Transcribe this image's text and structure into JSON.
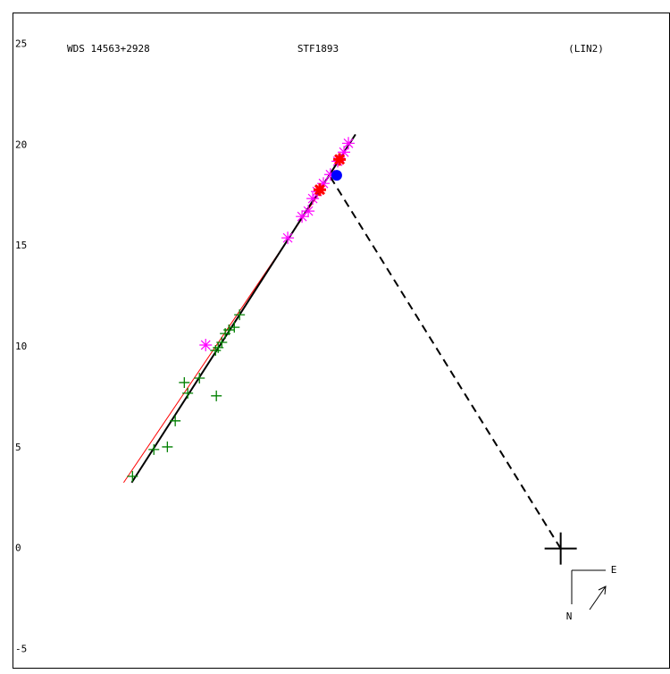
{
  "chart_data": {
    "type": "scatter",
    "title": "STF1893",
    "annotations": [
      "WDS 14563+2928",
      "(LIN2)"
    ],
    "compass": {
      "east": "E",
      "north": "N"
    },
    "xlim": [
      27.17,
      -5.4
    ],
    "ylim": [
      -5.93,
      26.55
    ],
    "yticks": [
      25,
      20,
      15,
      10,
      5,
      0,
      -5
    ],
    "grid": false,
    "series": [
      {
        "color": "#008000",
        "marker": "plus",
        "x": [
          21.24,
          20.18,
          19.51,
          19.12,
          18.5,
          18.67,
          17.92,
          17.08,
          17.12,
          16.99,
          16.81,
          16.64,
          16.46,
          16.19,
          15.93
        ],
        "values": [
          3.58,
          4.91,
          5.04,
          6.33,
          7.7,
          8.23,
          8.45,
          7.57,
          9.82,
          9.96,
          10.22,
          10.66,
          10.84,
          10.97,
          11.59
        ]
      },
      {
        "color": "#ff00ff",
        "marker": "asterisk",
        "x": [
          17.61,
          13.54,
          12.83,
          12.52,
          12.3,
          12.08,
          11.77,
          11.42,
          11.06,
          10.75,
          10.53
        ],
        "values": [
          10.09,
          15.4,
          16.46,
          16.73,
          17.35,
          17.7,
          18.1,
          18.54,
          19.2,
          19.65,
          20.09
        ]
      },
      {
        "color": "#ff0000",
        "marker": "star",
        "x": [
          11.95,
          10.97
        ],
        "values": [
          17.79,
          19.29
        ]
      },
      {
        "color": "#0000ff",
        "marker": "dot",
        "x": [
          11.11
        ],
        "values": [
          18.5
        ]
      },
      {
        "color": "#000000",
        "marker": "bigplus",
        "x": [
          0
        ],
        "values": [
          0
        ]
      }
    ],
    "lines": [
      {
        "color": "#ff0000",
        "style": "thin",
        "x": [
          21.68,
          11.86
        ],
        "values": [
          3.27,
          17.79
        ]
      },
      {
        "color": "#000000",
        "style": "solid",
        "x": [
          21.28,
          10.18
        ],
        "values": [
          3.27,
          20.53
        ]
      },
      {
        "color": "#000000",
        "style": "dashed",
        "x": [
          0,
          11.42
        ],
        "values": [
          0,
          18.41
        ]
      }
    ]
  }
}
